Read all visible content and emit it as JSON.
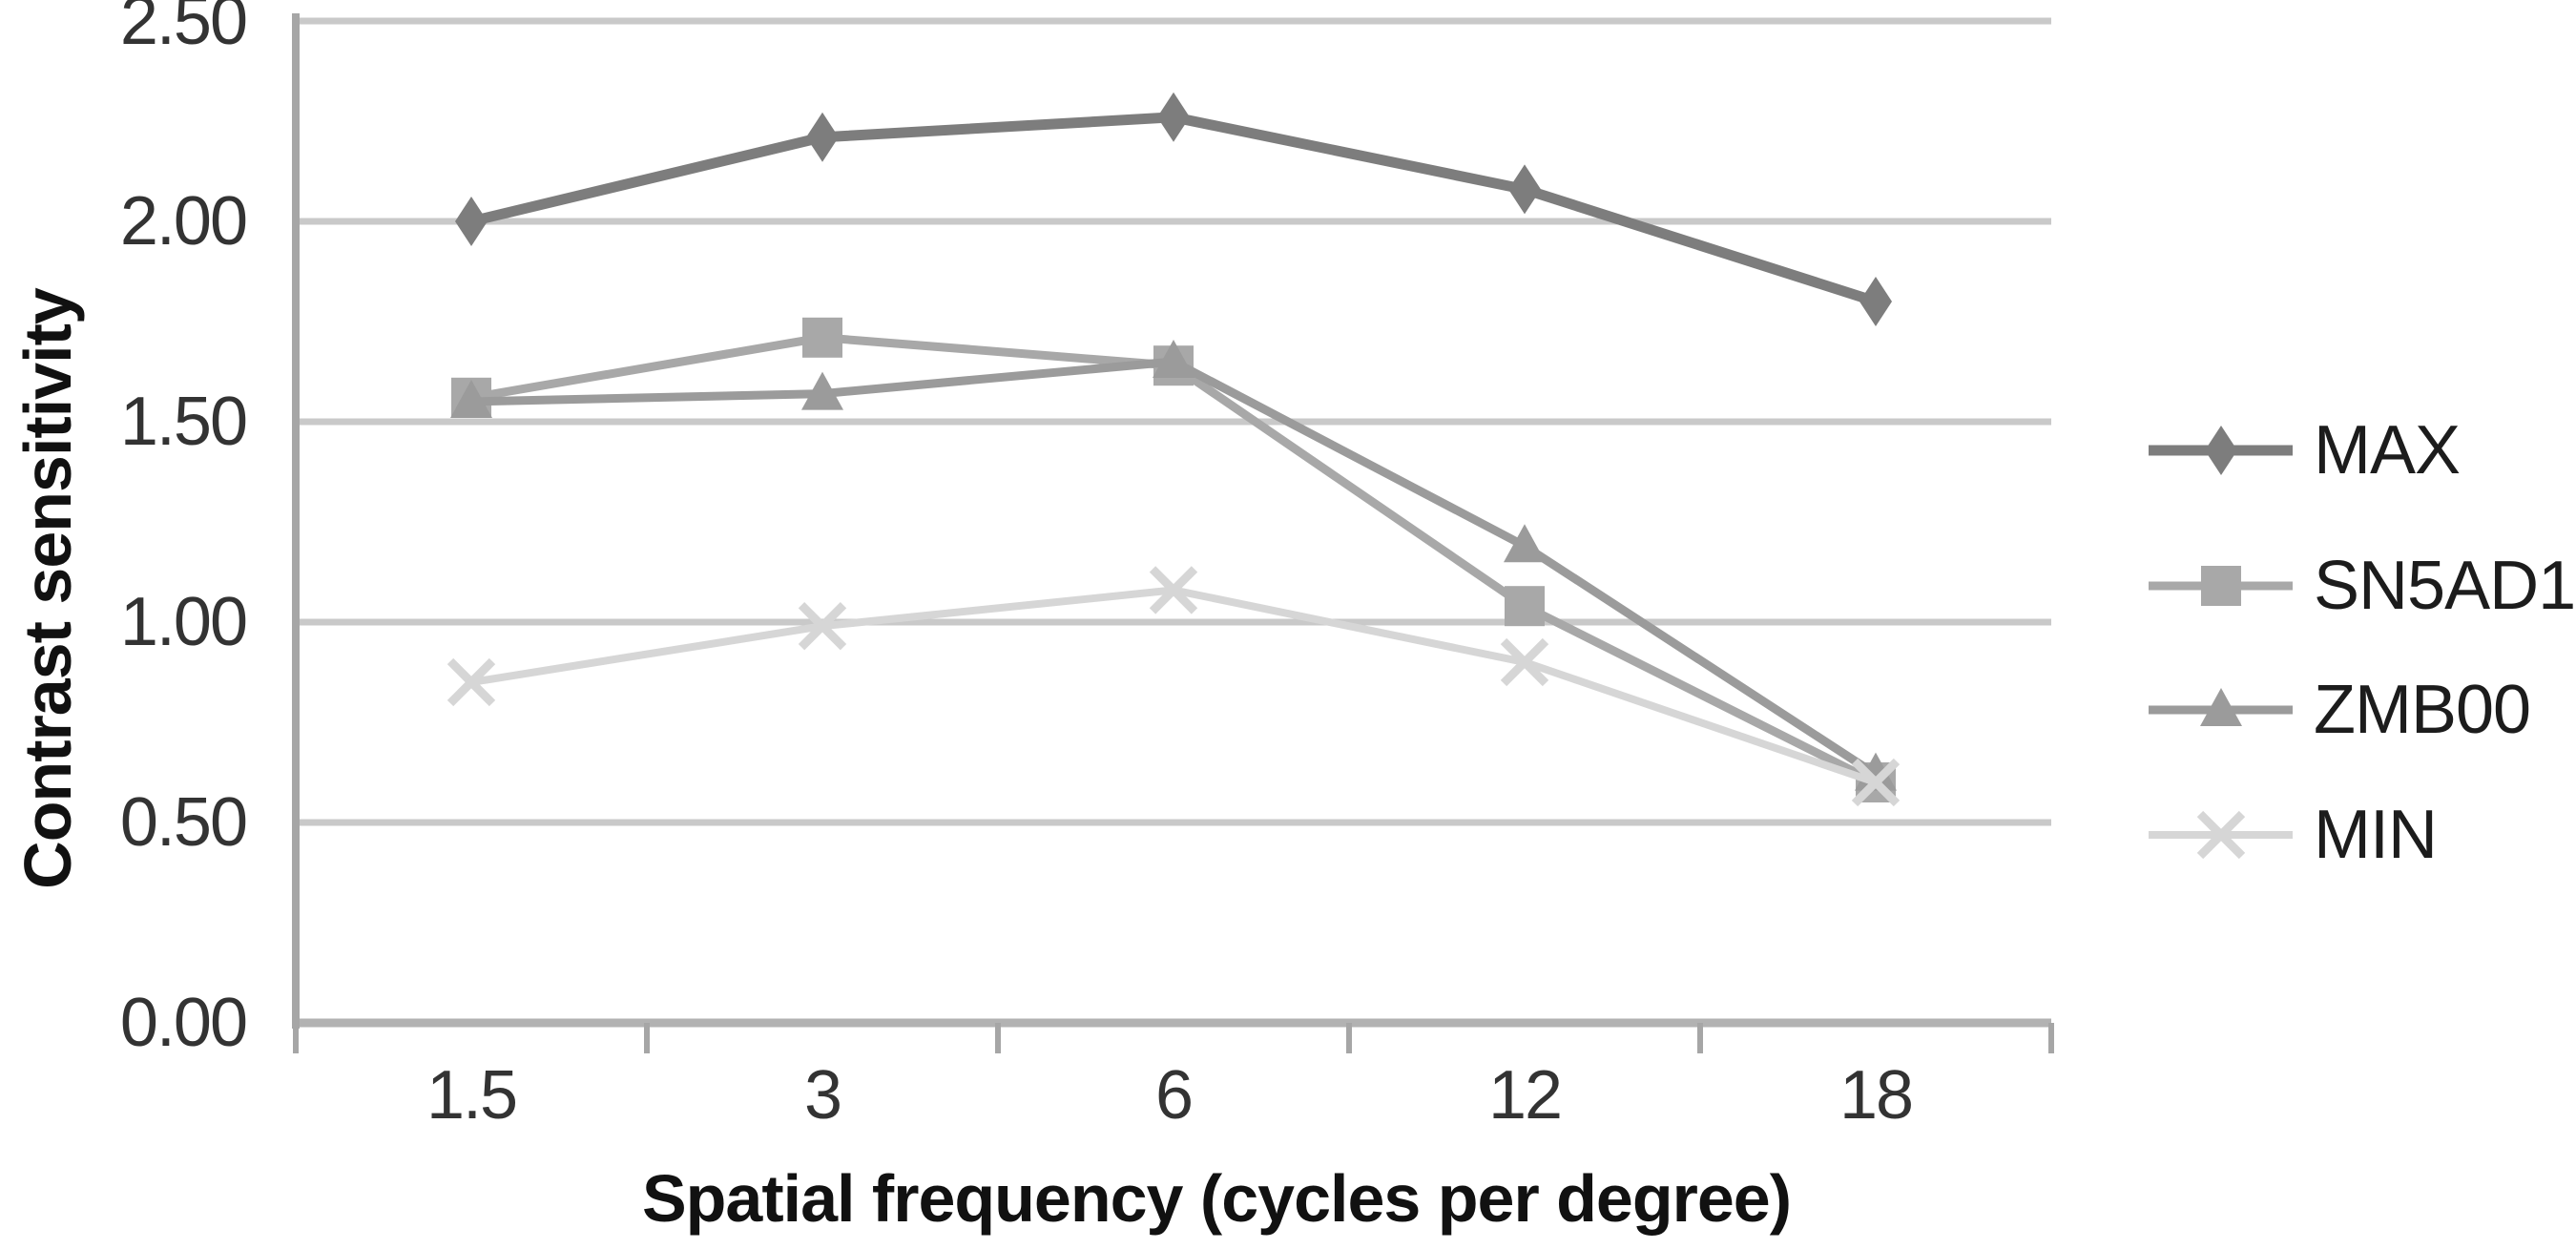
{
  "page": {
    "background": "#ffffff"
  },
  "colors": {
    "gridline": "#c9c9c9",
    "baseline": "#b2b2b2",
    "axis_line": "#a6a6a6",
    "tick_label": "#333333",
    "axis_title": "#111111",
    "legend_label": "#1c1c1c"
  },
  "chart_data": {
    "type": "line",
    "title": "",
    "xlabel": "Spatial frequency (cycles per degree)",
    "ylabel": "Contrast sensitivity",
    "categories": [
      1.5,
      3,
      6,
      12,
      18
    ],
    "x_tick_labels": [
      "1.5",
      "3",
      "6",
      "12",
      "18"
    ],
    "y_tick_labels": [
      "2.50",
      "2.00",
      "1.50",
      "1.00",
      "0.50",
      "0.00"
    ],
    "y_tick_values": [
      2.5,
      2.0,
      1.5,
      1.0,
      0.5,
      0.0
    ],
    "ylim": [
      0.0,
      2.5
    ],
    "grid": true,
    "legend_position": "right-middle",
    "series": [
      {
        "name": "MAX",
        "marker": "diamond",
        "color": "#7d7d7d",
        "line_width": 11,
        "values": [
          2.0,
          2.21,
          2.26,
          2.08,
          1.8
        ]
      },
      {
        "name": "SN5AD1",
        "marker": "square",
        "color": "#a8a8a8",
        "line_width": 9,
        "values": [
          1.56,
          1.71,
          1.64,
          1.04,
          0.6
        ]
      },
      {
        "name": "ZMB00",
        "marker": "triangle",
        "color": "#9b9b9b",
        "line_width": 9,
        "values": [
          1.55,
          1.57,
          1.65,
          1.19,
          0.62
        ]
      },
      {
        "name": "MIN",
        "marker": "x",
        "color": "#d6d6d6",
        "line_width": 8,
        "values": [
          0.85,
          0.99,
          1.08,
          0.9,
          0.6
        ]
      }
    ]
  }
}
